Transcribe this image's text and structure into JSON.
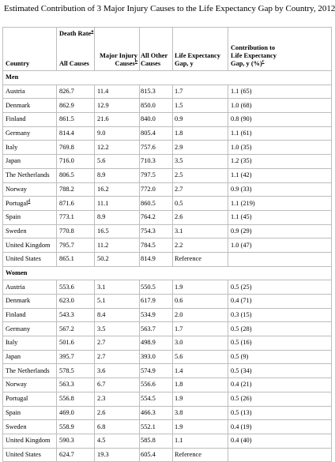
{
  "title": "Estimated Contribution of 3 Major Injury Causes to the Life Expectancy Gap by Country, 2012",
  "headers": {
    "country": "Country",
    "death_rate": "Death Rate",
    "death_rate_sup": "a",
    "all_causes": "All Causes",
    "major_injury_line1": "Major Injury",
    "major_injury_line2": "Causes",
    "major_injury_sup": "b",
    "all_other_line1": "All Other",
    "all_other_line2": "Causes",
    "le_gap_line1": "Life Expectancy",
    "le_gap_line2": "Gap, y",
    "contrib_line1": "Contribution to",
    "contrib_line2": "Life Expectancy",
    "contrib_line3": "Gap, y (%)",
    "contrib_sup": "c"
  },
  "groups": [
    {
      "label": "Men",
      "rows": [
        {
          "country": "Austria",
          "all": "826.7",
          "major": "11.4",
          "other": "815.3",
          "gap": "1.7",
          "contrib": "1.1 (65)"
        },
        {
          "country": "Denmark",
          "all": "862.9",
          "major": "12.9",
          "other": "850.0",
          "gap": "1.5",
          "contrib": "1.0 (68)"
        },
        {
          "country": "Finland",
          "all": "861.5",
          "major": "21.6",
          "other": "840.0",
          "gap": "0.9",
          "contrib": "0.8 (90)"
        },
        {
          "country": "Germany",
          "all": "814.4",
          "major": "9.0",
          "other": "805.4",
          "gap": "1.8",
          "contrib": "1.1 (61)"
        },
        {
          "country": "Italy",
          "all": "769.8",
          "major": "12.2",
          "other": "757.6",
          "gap": "2.9",
          "contrib": "1.0 (35)"
        },
        {
          "country": "Japan",
          "all": "716.0",
          "major": "5.6",
          "other": "710.3",
          "gap": "3.5",
          "contrib": "1.2 (35)"
        },
        {
          "country": "The Netherlands",
          "all": "806.5",
          "major": "8.9",
          "other": "797.5",
          "gap": "2.5",
          "contrib": "1.1 (42)"
        },
        {
          "country": "Norway",
          "all": "788.2",
          "major": "16.2",
          "other": "772.0",
          "gap": "2.7",
          "contrib": "0.9 (33)"
        },
        {
          "country": "Portugal",
          "country_sup": "d",
          "all": "871.6",
          "major": "11.1",
          "other": "860.5",
          "gap": "0.5",
          "contrib": "1.1 (219)"
        },
        {
          "country": "Spain",
          "all": "773.1",
          "major": "8.9",
          "other": "764.2",
          "gap": "2.6",
          "contrib": "1.1 (45)"
        },
        {
          "country": "Sweden",
          "all": "770.8",
          "major": "16.5",
          "other": "754.3",
          "gap": "3.1",
          "contrib": "0.9 (29)"
        },
        {
          "country": "United Kingdom",
          "all": "795.7",
          "major": "11.2",
          "other": "784.5",
          "gap": "2.2",
          "contrib": "1.0 (47)"
        },
        {
          "country": "United States",
          "all": "865.1",
          "major": "50.2",
          "other": "814.9",
          "gap": "Reference",
          "contrib": ""
        }
      ]
    },
    {
      "label": "Women",
      "rows": [
        {
          "country": "Austria",
          "all": "553.6",
          "major": "3.1",
          "other": "550.5",
          "gap": "1.9",
          "contrib": "0.5 (25)"
        },
        {
          "country": "Denmark",
          "all": "623.0",
          "major": "5.1",
          "other": "617.9",
          "gap": "0.6",
          "contrib": "0.4 (71)"
        },
        {
          "country": "Finland",
          "all": "543.3",
          "major": "8.4",
          "other": "534.9",
          "gap": "2.0",
          "contrib": "0.3 (15)"
        },
        {
          "country": "Germany",
          "all": "567.2",
          "major": "3.5",
          "other": "563.7",
          "gap": "1.7",
          "contrib": "0.5 (28)"
        },
        {
          "country": "Italy",
          "all": "501.6",
          "major": "2.7",
          "other": "498.9",
          "gap": "3.0",
          "contrib": "0.5 (16)"
        },
        {
          "country": "Japan",
          "all": "395.7",
          "major": "2.7",
          "other": "393.0",
          "gap": "5.6",
          "contrib": "0.5 (9)"
        },
        {
          "country": "The Netherlands",
          "all": "578.5",
          "major": "3.6",
          "other": "574.9",
          "gap": "1.4",
          "contrib": "0.5 (34)"
        },
        {
          "country": "Norway",
          "all": "563.3",
          "major": "6.7",
          "other": "556.6",
          "gap": "1.8",
          "contrib": "0.4 (21)"
        },
        {
          "country": "Portugal",
          "all": "556.8",
          "major": "2.3",
          "other": "554.5",
          "gap": "1.9",
          "contrib": "0.5 (26)"
        },
        {
          "country": "Spain",
          "all": "469.0",
          "major": "2.6",
          "other": "466.3",
          "gap": "3.8",
          "contrib": "0.5 (13)"
        },
        {
          "country": "Sweden",
          "all": "558.9",
          "major": "6.8",
          "other": "552.1",
          "gap": "1.9",
          "contrib": "0.4 (19)"
        },
        {
          "country": "United Kingdom",
          "all": "590.3",
          "major": "4.5",
          "other": "585.8",
          "gap": "1.1",
          "contrib": "0.4 (40)"
        },
        {
          "country": "United States",
          "all": "624.7",
          "major": "19.3",
          "other": "605.4",
          "gap": "Reference",
          "contrib": ""
        }
      ]
    }
  ]
}
